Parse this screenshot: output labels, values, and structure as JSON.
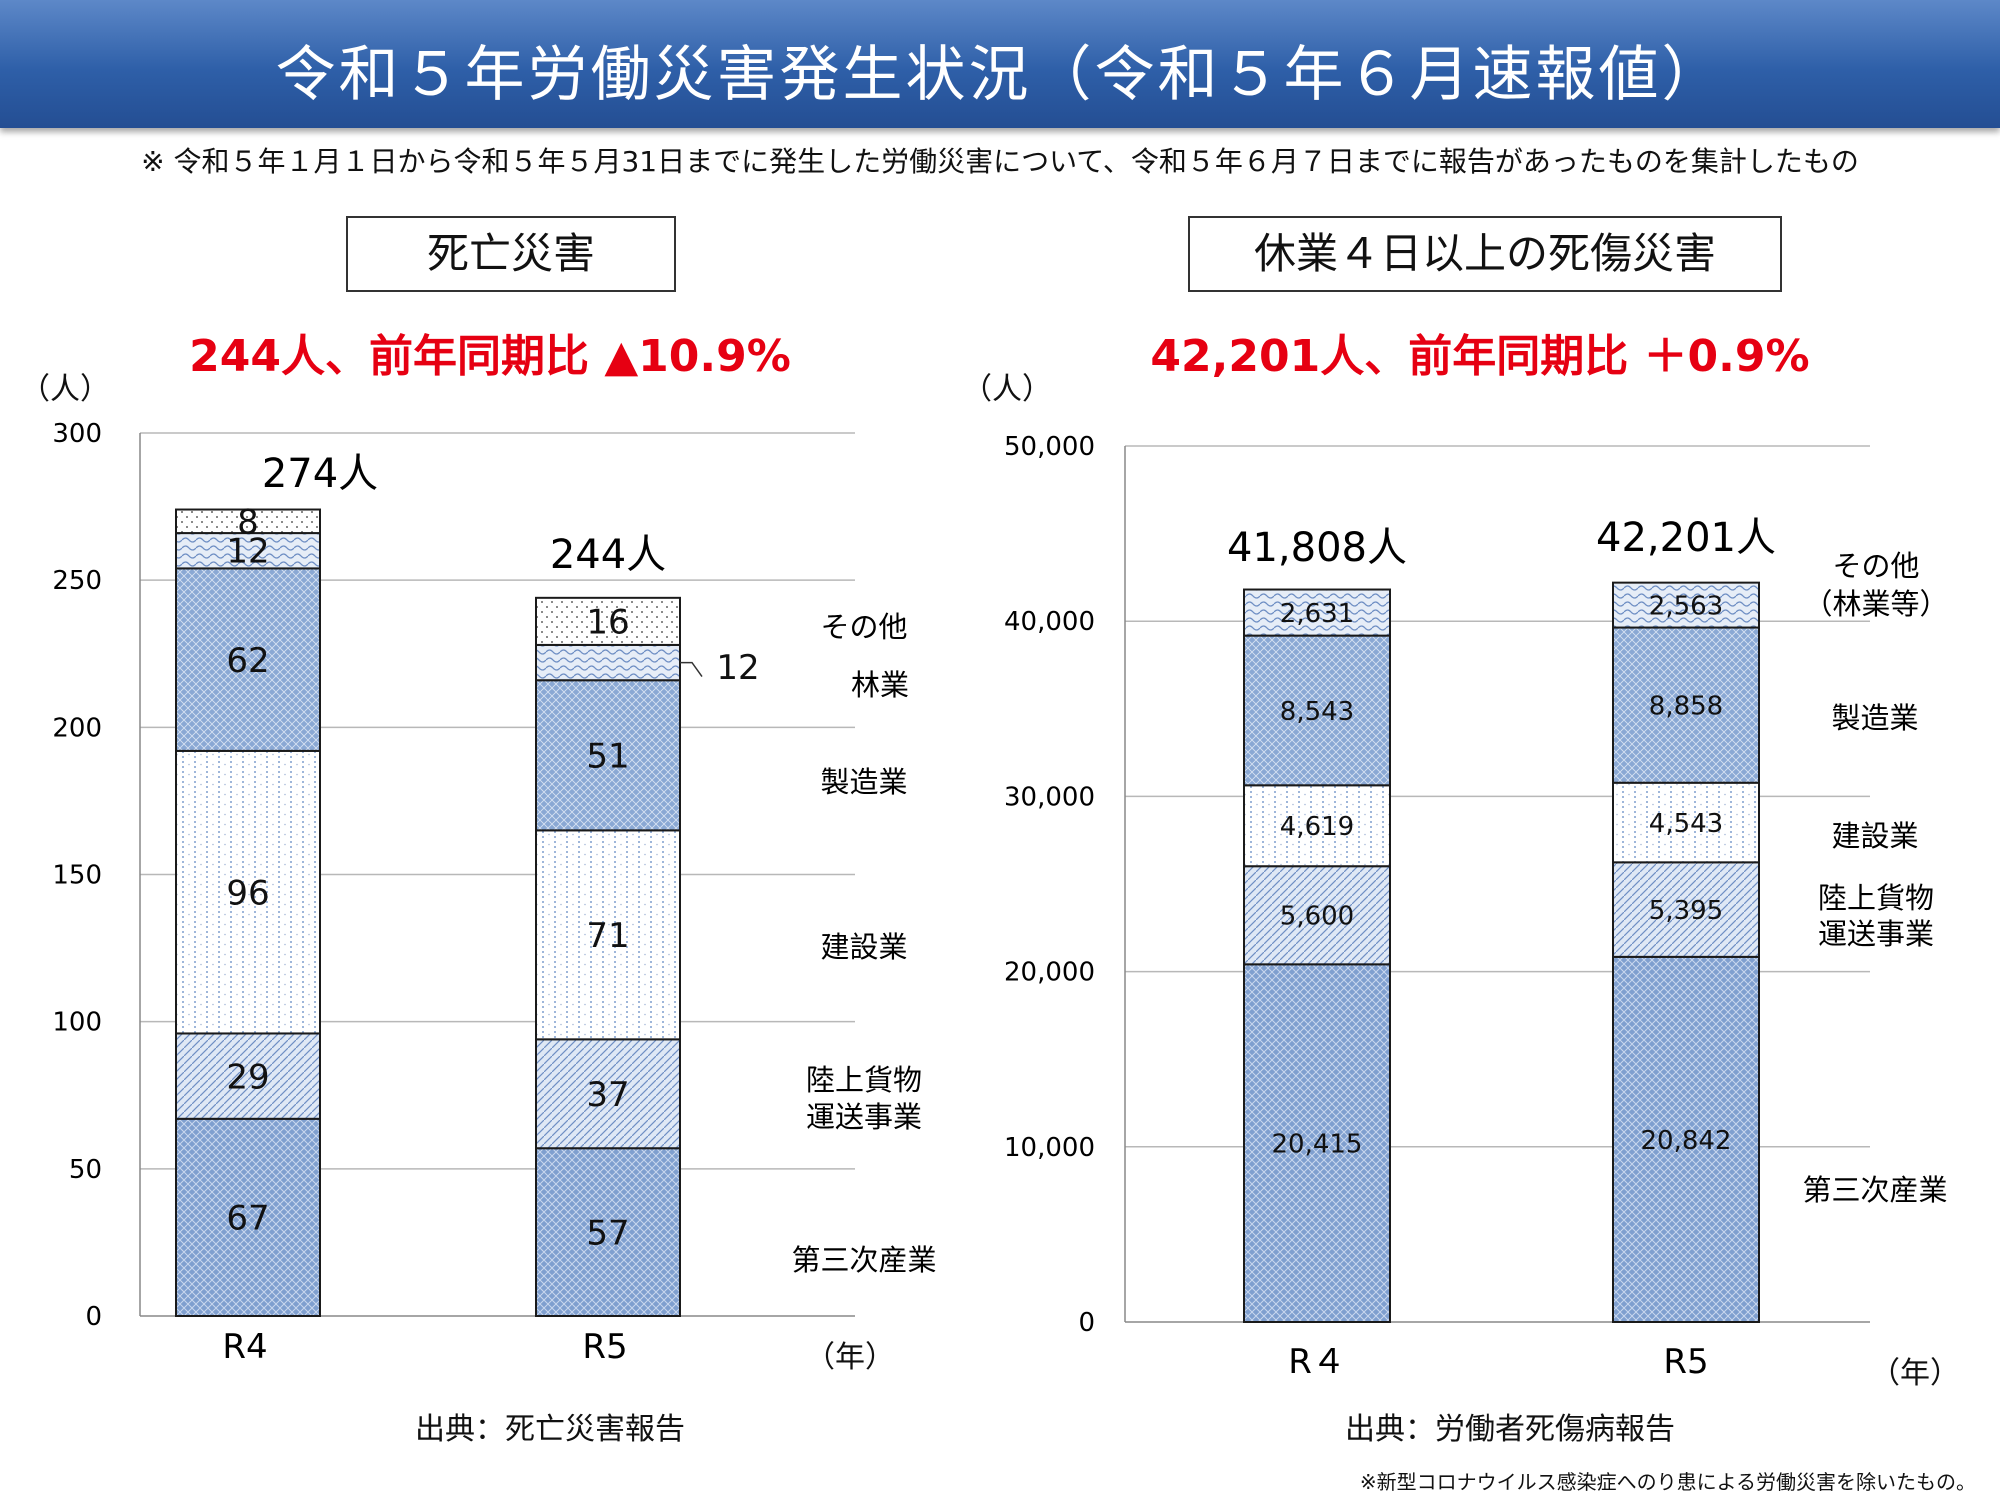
{
  "header": {
    "title": "令和５年労働災害発生状況（令和５年６月速報値）",
    "note": "※ 令和５年１月１日から令和５年５月31日までに発生した労働災害について、令和５年６月７日までに報告があったものを集計したもの"
  },
  "left": {
    "box_title": "死亡災害",
    "summary": "244人、前年同期比 ▲10.9%",
    "unit": "（人）",
    "year_unit": "（年）",
    "source": "出典：死亡災害報告"
  },
  "right": {
    "box_title": "休業４日以上の死傷災害",
    "summary": "42,201人、前年同期比 ＋0.9%",
    "unit": "（人）",
    "year_unit": "（年）",
    "source": "出典：労働者死傷病報告"
  },
  "footnote": "※新型コロナウイルス感染症へのり患による労働災害を除いたもの。",
  "colors": {
    "banner": "#2e5fa8",
    "accent_red": "#e60012",
    "bar_blue": "#7f9fcf",
    "grid": "#b8b8b8"
  },
  "chart_data": [
    {
      "type": "bar",
      "stacked": true,
      "title": "死亡災害",
      "categories": [
        "R4",
        "R5"
      ],
      "ylim": [
        0,
        300
      ],
      "yticks": [
        "0",
        "50",
        "100",
        "150",
        "200",
        "250",
        "300"
      ],
      "totals": [
        "274人",
        "244人"
      ],
      "series": [
        {
          "name": "第三次産業",
          "values": [
            67,
            57
          ],
          "labels": [
            "67",
            "57"
          ]
        },
        {
          "name": "陸上貨物運送事業",
          "values": [
            29,
            37
          ],
          "labels": [
            "29",
            "37"
          ]
        },
        {
          "name": "建設業",
          "values": [
            96,
            71
          ],
          "labels": [
            "96",
            "71"
          ]
        },
        {
          "name": "製造業",
          "values": [
            62,
            51
          ],
          "labels": [
            "62",
            "51"
          ]
        },
        {
          "name": "林業",
          "values": [
            12,
            12
          ],
          "labels": [
            "12",
            "12"
          ]
        },
        {
          "name": "その他",
          "values": [
            8,
            16
          ],
          "labels": [
            "8",
            "16"
          ]
        }
      ],
      "legend": [
        "第三次産業",
        "陸上貨物",
        "運送事業",
        "建設業",
        "製造業",
        "林業",
        "その他"
      ]
    },
    {
      "type": "bar",
      "stacked": true,
      "title": "休業４日以上の死傷災害",
      "categories": [
        "R４",
        "R5"
      ],
      "ylim": [
        0,
        50000
      ],
      "yticks": [
        "0",
        "10,000",
        "20,000",
        "30,000",
        "40,000",
        "50,000"
      ],
      "totals": [
        "41,808人",
        "42,201人"
      ],
      "series": [
        {
          "name": "第三次産業",
          "values": [
            20415,
            20842
          ],
          "labels": [
            "20,415",
            "20,842"
          ]
        },
        {
          "name": "陸上貨物運送事業",
          "values": [
            5600,
            5395
          ],
          "labels": [
            "5,600",
            "5,395"
          ]
        },
        {
          "name": "建設業",
          "values": [
            4619,
            4543
          ],
          "labels": [
            "4,619",
            "4,543"
          ]
        },
        {
          "name": "製造業",
          "values": [
            8543,
            8858
          ],
          "labels": [
            "8,543",
            "8,858"
          ]
        },
        {
          "name": "その他（林業等）",
          "values": [
            2631,
            2563
          ],
          "labels": [
            "2,631",
            "2,563"
          ]
        }
      ],
      "legend": [
        "第三次産業",
        "陸上貨物",
        "運送事業",
        "建設業",
        "製造業",
        "その他",
        "（林業等）"
      ]
    }
  ]
}
